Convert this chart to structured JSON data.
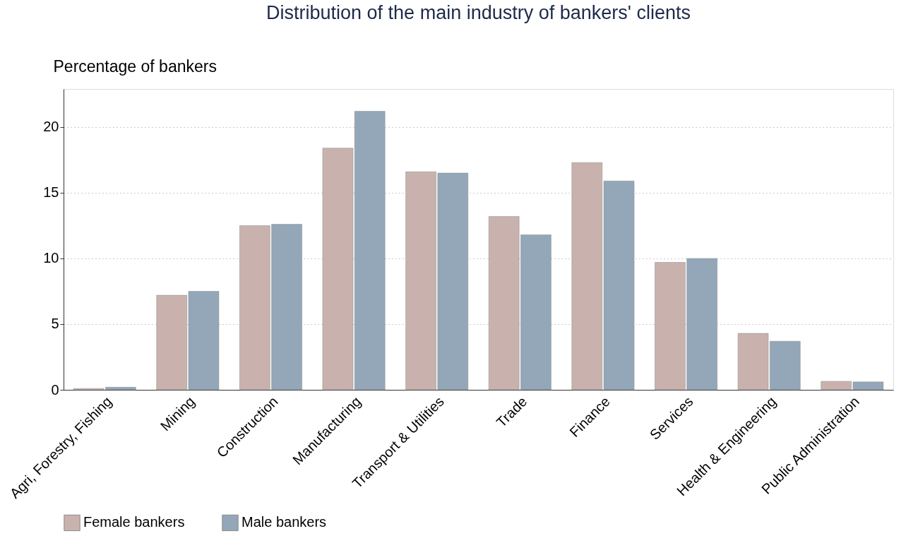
{
  "chart_data": {
    "type": "bar",
    "title": "Distribution of the main industry of bankers' clients",
    "ylabel": "Percentage of bankers",
    "categories": [
      "Agri, Forestry, Fishing",
      "Mining",
      "Construction",
      "Manufacturing",
      "Transport & Utilities",
      "Trade",
      "Finance",
      "Services",
      "Health & Engineering",
      "Public Administration"
    ],
    "series": [
      {
        "name": "Female bankers",
        "color": "#c9b2ad",
        "values": [
          0.1,
          7.2,
          12.5,
          18.4,
          16.6,
          13.2,
          17.3,
          9.7,
          4.3,
          0.65
        ]
      },
      {
        "name": "Male bankers",
        "color": "#93a7b8",
        "values": [
          0.2,
          7.5,
          12.6,
          21.2,
          16.5,
          11.8,
          15.9,
          10.0,
          3.7,
          0.6
        ]
      }
    ],
    "ylim": [
      0,
      22.9
    ],
    "yticks": [
      0,
      5,
      10,
      15,
      20
    ],
    "grid": "y",
    "legend": "bottom"
  }
}
